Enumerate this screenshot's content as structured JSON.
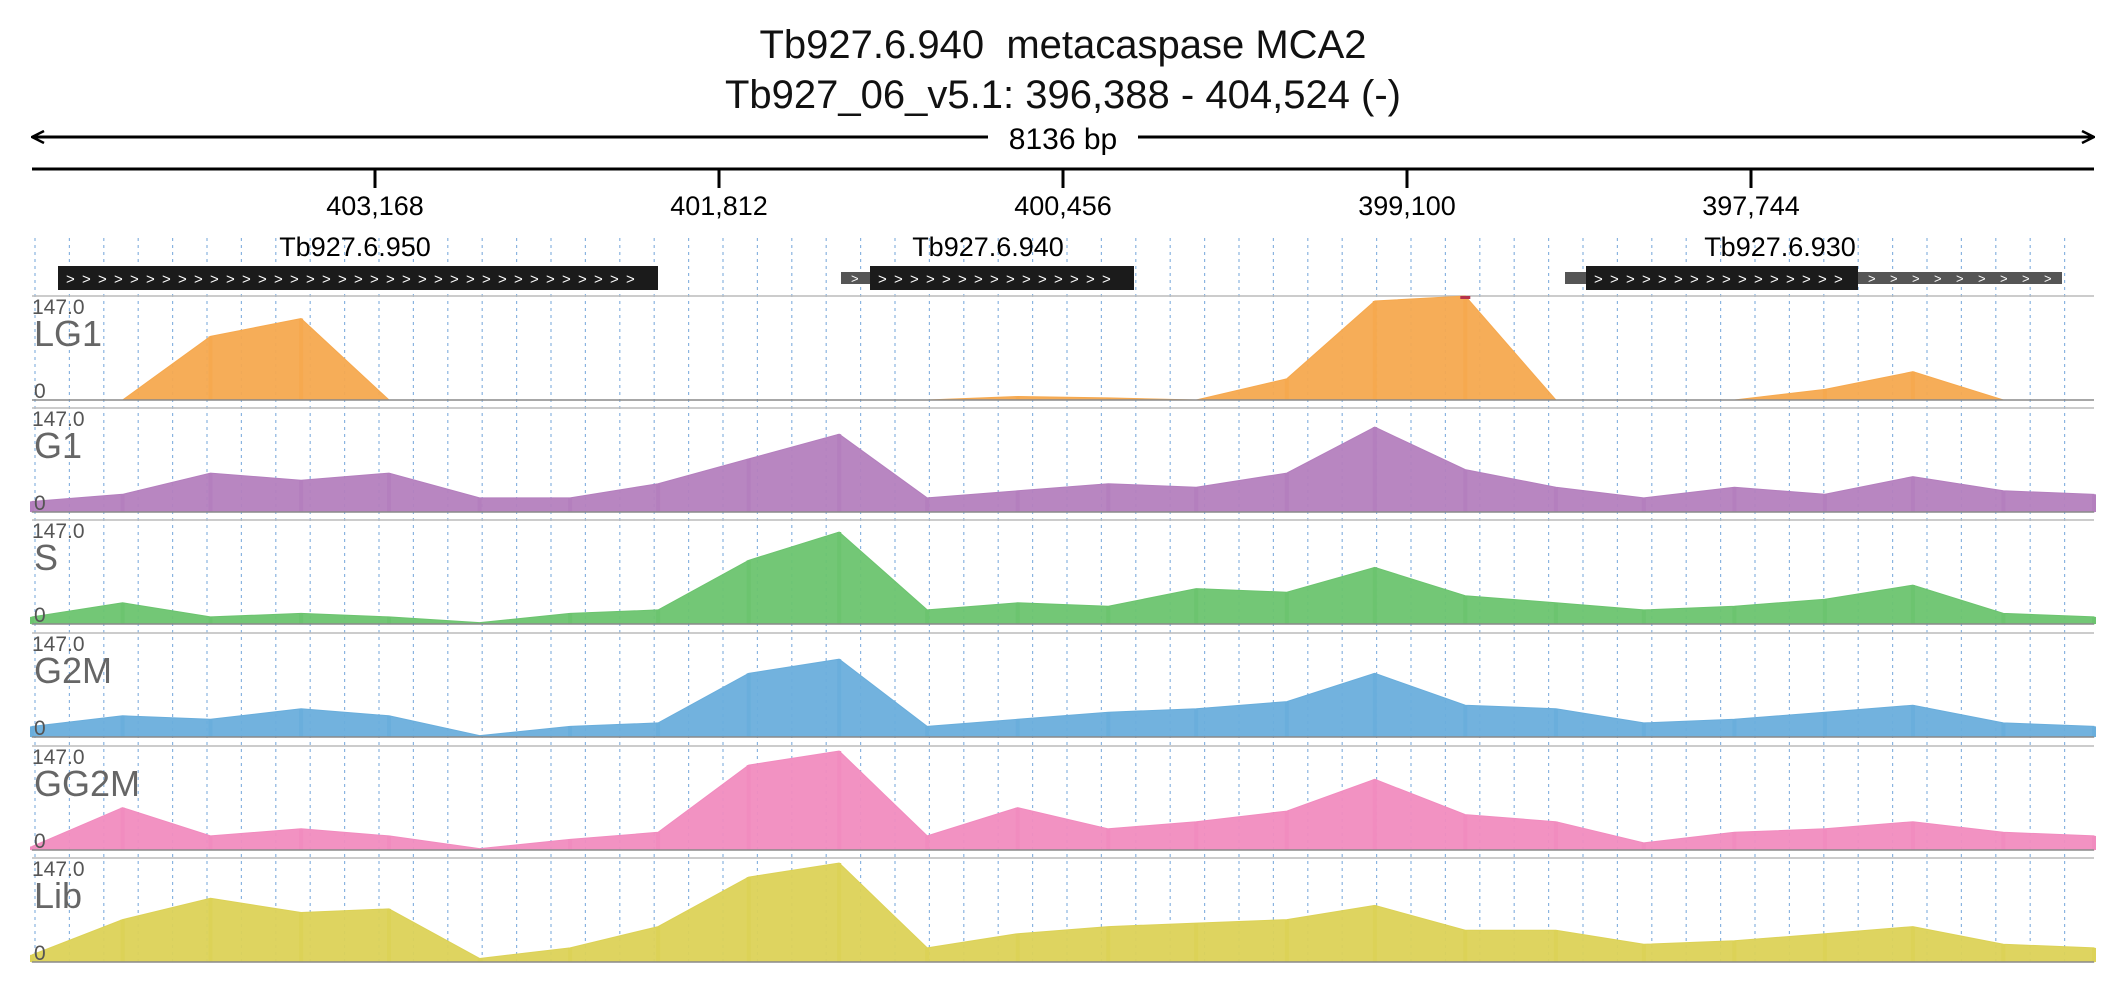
{
  "title": {
    "line1": "Tb927.6.940  metacaspase MCA2",
    "line2": "Tb927_06_v5.1: 396,388 - 404,524 (-)"
  },
  "span_label": "8136 bp",
  "ruler": {
    "ticks": [
      "403,168",
      "401,812",
      "400,456",
      "399,100",
      "397,744"
    ]
  },
  "genes": [
    {
      "name": "Tb927.6.950",
      "strand": "+"
    },
    {
      "name": "Tb927.6.940",
      "strand": "+"
    },
    {
      "name": "Tb927.6.930",
      "strand": "+"
    }
  ],
  "colors": {
    "LG1": "#f6a94f",
    "G1": "#b47fbe",
    "S": "#6cc46f",
    "G2M": "#6aaedc",
    "GG2M": "#f18cbf",
    "Lib": "#dcd257",
    "clip": "#b5324a",
    "gene": "#1b1b1b",
    "utr": "#555555",
    "grid": "#8ab4e0"
  },
  "chart_data": {
    "type": "area",
    "title": "Tb927.6.940  metacaspase MCA2",
    "subtitle": "Tb927_06_v5.1: 396,388 - 404,524 (-)",
    "x_axis_label": "8136 bp",
    "x_tick_labels": [
      "403,168",
      "401,812",
      "400,456",
      "399,100",
      "397,744"
    ],
    "ylim": [
      0,
      147.0
    ],
    "y_max_label": "147.0",
    "y_min_label": "0",
    "x": [
      404420,
      404070,
      403730,
      403380,
      403040,
      402690,
      402340,
      402000,
      401650,
      401300,
      400960,
      400610,
      400260,
      399920,
      399570,
      399230,
      398880,
      398530,
      398190,
      397840,
      397490,
      397150,
      396800,
      396450
    ],
    "series": [
      {
        "name": "LG1",
        "values": [
          0,
          0,
          90,
          115,
          0,
          0,
          0,
          0,
          0,
          0,
          0,
          5,
          3,
          0,
          30,
          140,
          147,
          0,
          0,
          0,
          15,
          40,
          0,
          0
        ]
      },
      {
        "name": "G1",
        "values": [
          15,
          25,
          55,
          45,
          55,
          20,
          20,
          40,
          75,
          110,
          20,
          30,
          40,
          35,
          55,
          120,
          60,
          35,
          20,
          35,
          25,
          50,
          30,
          25
        ]
      },
      {
        "name": "S",
        "values": [
          10,
          30,
          10,
          15,
          10,
          2,
          15,
          20,
          90,
          130,
          20,
          30,
          25,
          50,
          45,
          80,
          40,
          30,
          20,
          25,
          35,
          55,
          15,
          10
        ]
      },
      {
        "name": "G2M",
        "values": [
          15,
          30,
          25,
          40,
          30,
          2,
          15,
          20,
          90,
          110,
          15,
          25,
          35,
          40,
          50,
          90,
          45,
          40,
          20,
          25,
          35,
          45,
          20,
          15
        ]
      },
      {
        "name": "GG2M",
        "values": [
          5,
          60,
          20,
          30,
          20,
          2,
          15,
          25,
          120,
          140,
          20,
          60,
          30,
          40,
          55,
          100,
          50,
          40,
          10,
          25,
          30,
          40,
          25,
          20
        ]
      },
      {
        "name": "Lib",
        "values": [
          10,
          60,
          90,
          70,
          75,
          5,
          20,
          50,
          120,
          140,
          20,
          40,
          50,
          55,
          60,
          80,
          45,
          45,
          25,
          30,
          40,
          50,
          25,
          20
        ]
      }
    ]
  }
}
